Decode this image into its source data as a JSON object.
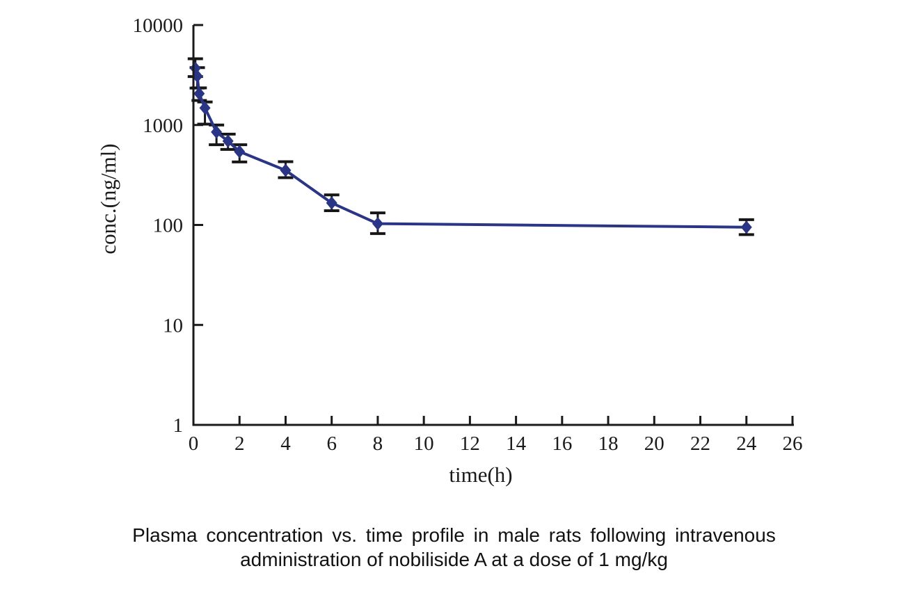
{
  "figure": {
    "caption_line1": "Plasma concentration vs. time profile in male rats following intravenous",
    "caption_line2": "administration of nobiliside A at a dose of 1 mg/kg"
  },
  "chart_data": {
    "type": "line",
    "title": "",
    "xlabel": "time(h)",
    "ylabel": "conc.(ng/ml)",
    "legend": "none",
    "grid": false,
    "x_axis": {
      "min": 0,
      "max": 26,
      "tick_labels": [
        "0",
        "2",
        "4",
        "6",
        "8",
        "10",
        "12",
        "14",
        "16",
        "18",
        "20",
        "22",
        "24",
        "26"
      ],
      "tick_values": [
        0,
        2,
        4,
        6,
        8,
        10,
        12,
        14,
        16,
        18,
        20,
        22,
        24,
        26
      ]
    },
    "y_axis": {
      "scale": "log",
      "min": 1,
      "max": 10000,
      "tick_labels": [
        "1",
        "10",
        "100",
        "1000",
        "10000"
      ],
      "tick_values": [
        1,
        10,
        100,
        1000,
        10000
      ]
    },
    "series": [
      {
        "name": "nobiliside A 1 mg/kg IV",
        "marker": "diamond",
        "color": "#2a3585",
        "error_bar_color": "#161616",
        "points": [
          {
            "t": 0.083,
            "conc": 3700,
            "lo": 3050,
            "hi": 4600
          },
          {
            "t": 0.167,
            "conc": 3080,
            "lo": 2340,
            "hi": 3750
          },
          {
            "t": 0.25,
            "conc": 2060,
            "lo": 1760,
            "hi": 2350
          },
          {
            "t": 0.5,
            "conc": 1480,
            "lo": 1020,
            "hi": 1700
          },
          {
            "t": 1,
            "conc": 850,
            "lo": 635,
            "hi": 1000
          },
          {
            "t": 1.5,
            "conc": 690,
            "lo": 570,
            "hi": 810
          },
          {
            "t": 2,
            "conc": 542,
            "lo": 427,
            "hi": 635
          },
          {
            "t": 4,
            "conc": 352,
            "lo": 297,
            "hi": 430
          },
          {
            "t": 6,
            "conc": 166,
            "lo": 139,
            "hi": 200
          },
          {
            "t": 8,
            "conc": 103,
            "lo": 82,
            "hi": 132
          },
          {
            "t": 24,
            "conc": 95,
            "lo": 80,
            "hi": 113
          }
        ]
      }
    ],
    "colors": {
      "axis": "#1a1a1a",
      "series": "#2a3585",
      "error_bars": "#161616",
      "background": "#ffffff"
    }
  }
}
